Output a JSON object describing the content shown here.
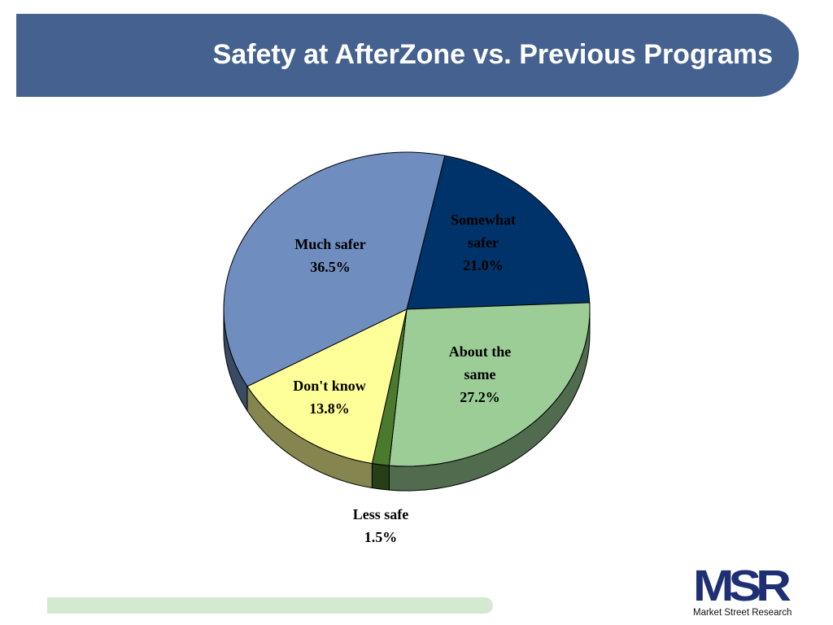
{
  "header": {
    "title": "Safety at AfterZone vs. Previous Programs"
  },
  "chart_data": {
    "type": "pie",
    "style": "3d",
    "slices": [
      {
        "label": "Somewhat safer",
        "value": 21.0,
        "display": "21.0%",
        "color": "#00336a"
      },
      {
        "label": "About the same",
        "value": 27.2,
        "display": "27.2%",
        "color": "#9ccd97"
      },
      {
        "label": "Less safe",
        "value": 1.5,
        "display": "1.5%",
        "color": "#4a7a2c"
      },
      {
        "label": "Don't know",
        "value": 13.8,
        "display": "13.8%",
        "color": "#ffff99"
      },
      {
        "label": "Much safer",
        "value": 36.5,
        "display": "36.5%",
        "color": "#6f8ebf"
      }
    ]
  },
  "logo": {
    "mark": "MSR",
    "text": "Market Street Research",
    "color": "#1e2f74"
  }
}
